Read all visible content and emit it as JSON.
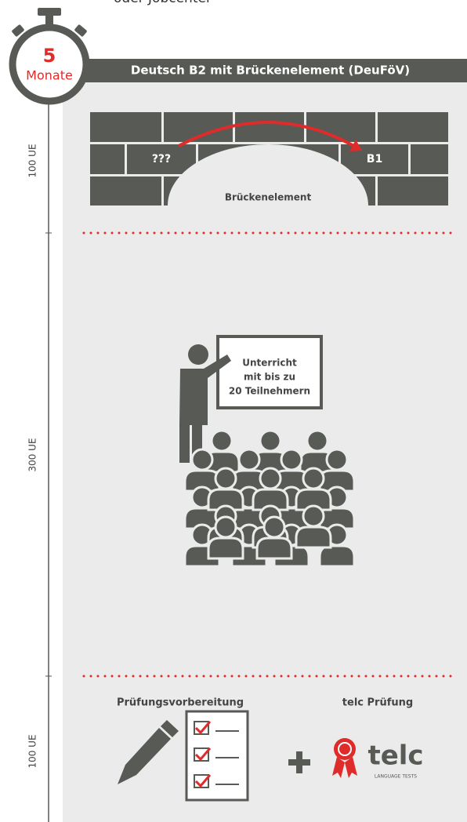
{
  "header": {
    "note": "oder Jobcenter",
    "duration_number": "5",
    "duration_unit": "Monate",
    "title": "Deutsch B2 mit Brückenelement (DeuFöV)"
  },
  "timeline": [
    "100 UE",
    "300 UE",
    "100 UE"
  ],
  "bridge": {
    "from": "???",
    "to": "B1",
    "label": "Brückenelement"
  },
  "lesson": {
    "lines": [
      "Unterricht",
      "mit bis zu",
      "20 Teilnehmern"
    ]
  },
  "exam": {
    "prep": "Prüfungsvorbereitung",
    "exam": "telc Prüfung",
    "logo": "telc",
    "logo_sub": "LANGUAGE TESTS"
  }
}
